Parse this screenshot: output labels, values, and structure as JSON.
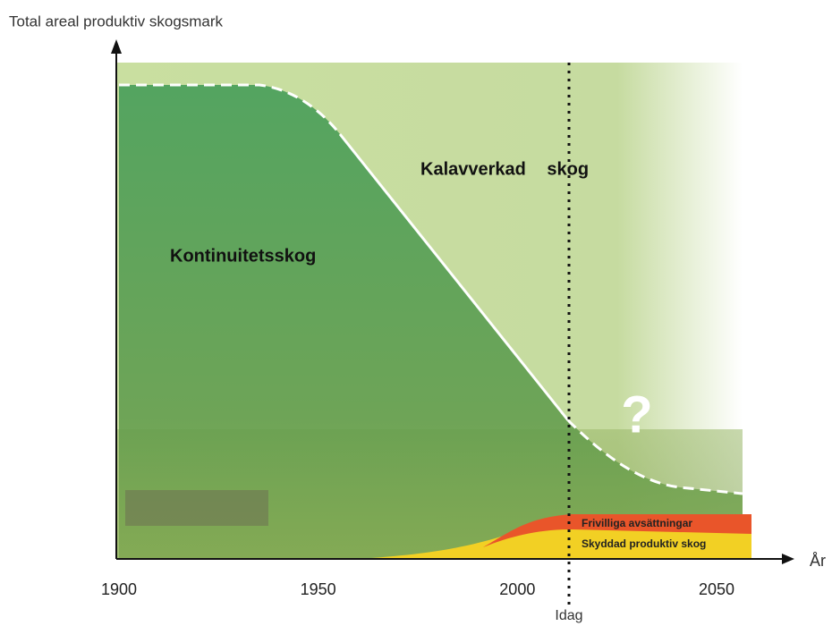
{
  "header": {
    "y_axis_title": "Total areal produktiv skogsmark",
    "x_axis_title": "År"
  },
  "x_axis": {
    "ticks": [
      1900,
      1950,
      2000,
      2050
    ],
    "marker": "Idag"
  },
  "regions": {
    "upper": "Kalavverkad skog",
    "lower": "Kontinuitetsskog",
    "future": "?",
    "voluntary": "Frivilliga avsättningar",
    "protected": "Skyddad produktiv skog"
  }
}
